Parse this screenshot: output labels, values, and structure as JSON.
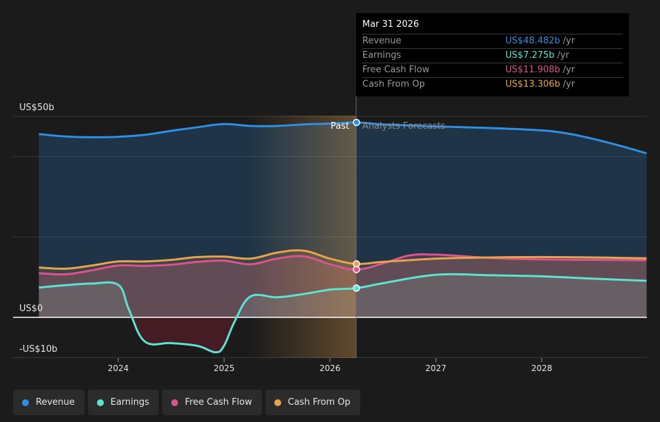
{
  "chart_data": {
    "type": "area",
    "xaxis_ticks": [
      "2024",
      "2025",
      "2026",
      "2027",
      "2028"
    ],
    "yaxis_labels": [
      "US$50b",
      "US$0",
      "-US$10b"
    ],
    "ylim": [
      -10,
      50
    ],
    "region_labels": {
      "past": "Past",
      "forecast": "Analysts Forecasts"
    },
    "divider_date": 2026.25,
    "series": [
      {
        "name": "Revenue",
        "key": "revenue",
        "color": "#2e8fe3",
        "points": [
          [
            2023.25,
            45.6
          ],
          [
            2023.5,
            45.0
          ],
          [
            2023.75,
            44.8
          ],
          [
            2024.0,
            44.9
          ],
          [
            2024.25,
            45.4
          ],
          [
            2024.5,
            46.4
          ],
          [
            2024.75,
            47.3
          ],
          [
            2025.0,
            48.1
          ],
          [
            2025.25,
            47.6
          ],
          [
            2025.5,
            47.6
          ],
          [
            2025.75,
            48.0
          ],
          [
            2026.0,
            48.2
          ],
          [
            2026.25,
            48.482
          ],
          [
            2026.5,
            48.0
          ],
          [
            2027.0,
            47.5
          ],
          [
            2027.5,
            47.1
          ],
          [
            2028.0,
            46.5
          ],
          [
            2028.25,
            45.7
          ],
          [
            2028.5,
            44.3
          ],
          [
            2028.75,
            42.6
          ],
          [
            2028.99,
            40.8
          ]
        ]
      },
      {
        "name": "Earnings",
        "key": "earnings",
        "color": "#5ee3d3",
        "points": [
          [
            2023.25,
            7.4
          ],
          [
            2023.5,
            8.0
          ],
          [
            2023.75,
            8.4
          ],
          [
            2024.0,
            8.1
          ],
          [
            2024.1,
            2.0
          ],
          [
            2024.25,
            -6.0
          ],
          [
            2024.5,
            -6.4
          ],
          [
            2024.75,
            -7.1
          ],
          [
            2024.92,
            -8.7
          ],
          [
            2025.0,
            -7.0
          ],
          [
            2025.1,
            -1.0
          ],
          [
            2025.25,
            5.2
          ],
          [
            2025.5,
            5.0
          ],
          [
            2025.75,
            5.8
          ],
          [
            2026.0,
            6.9
          ],
          [
            2026.25,
            7.275
          ],
          [
            2026.5,
            8.5
          ],
          [
            2027.0,
            10.6
          ],
          [
            2027.5,
            10.5
          ],
          [
            2028.0,
            10.2
          ],
          [
            2028.5,
            9.6
          ],
          [
            2028.99,
            9.1
          ]
        ]
      },
      {
        "name": "Free Cash Flow",
        "key": "fcf",
        "color": "#d9558e",
        "points": [
          [
            2023.25,
            11.0
          ],
          [
            2023.5,
            10.7
          ],
          [
            2023.75,
            11.7
          ],
          [
            2024.0,
            12.9
          ],
          [
            2024.25,
            12.8
          ],
          [
            2024.5,
            13.1
          ],
          [
            2024.75,
            13.8
          ],
          [
            2025.0,
            14.1
          ],
          [
            2025.25,
            13.2
          ],
          [
            2025.5,
            14.6
          ],
          [
            2025.75,
            15.2
          ],
          [
            2026.0,
            13.2
          ],
          [
            2026.25,
            11.908
          ],
          [
            2026.5,
            13.4
          ],
          [
            2026.75,
            15.4
          ],
          [
            2027.0,
            15.6
          ],
          [
            2027.5,
            14.8
          ],
          [
            2028.0,
            14.4
          ],
          [
            2028.5,
            14.3
          ],
          [
            2028.99,
            14.2
          ]
        ]
      },
      {
        "name": "Cash From Op",
        "key": "cfo",
        "color": "#e8a44c",
        "points": [
          [
            2023.25,
            12.4
          ],
          [
            2023.5,
            12.1
          ],
          [
            2023.75,
            12.9
          ],
          [
            2024.0,
            13.9
          ],
          [
            2024.25,
            13.9
          ],
          [
            2024.5,
            14.3
          ],
          [
            2024.75,
            15.0
          ],
          [
            2025.0,
            15.1
          ],
          [
            2025.25,
            14.6
          ],
          [
            2025.5,
            16.1
          ],
          [
            2025.75,
            16.6
          ],
          [
            2026.0,
            14.6
          ],
          [
            2026.25,
            13.306
          ],
          [
            2026.5,
            13.8
          ],
          [
            2027.0,
            14.6
          ],
          [
            2027.5,
            14.9
          ],
          [
            2028.0,
            15.0
          ],
          [
            2028.5,
            14.9
          ],
          [
            2028.99,
            14.7
          ]
        ]
      }
    ]
  },
  "tooltip": {
    "date": "Mar 31 2026",
    "unit": "/yr",
    "rows": [
      {
        "label": "Revenue",
        "value": "US$48.482b",
        "color": "#2e8fe3"
      },
      {
        "label": "Earnings",
        "value": "US$7.275b",
        "color": "#5ee3d3"
      },
      {
        "label": "Free Cash Flow",
        "value": "US$11.908b",
        "color": "#d9558e"
      },
      {
        "label": "Cash From Op",
        "value": "US$13.306b",
        "color": "#e8a44c"
      }
    ]
  },
  "legend": [
    {
      "label": "Revenue",
      "color": "#2e8fe3"
    },
    {
      "label": "Earnings",
      "color": "#5ee3d3"
    },
    {
      "label": "Free Cash Flow",
      "color": "#d9558e"
    },
    {
      "label": "Cash From Op",
      "color": "#e8a44c"
    }
  ]
}
